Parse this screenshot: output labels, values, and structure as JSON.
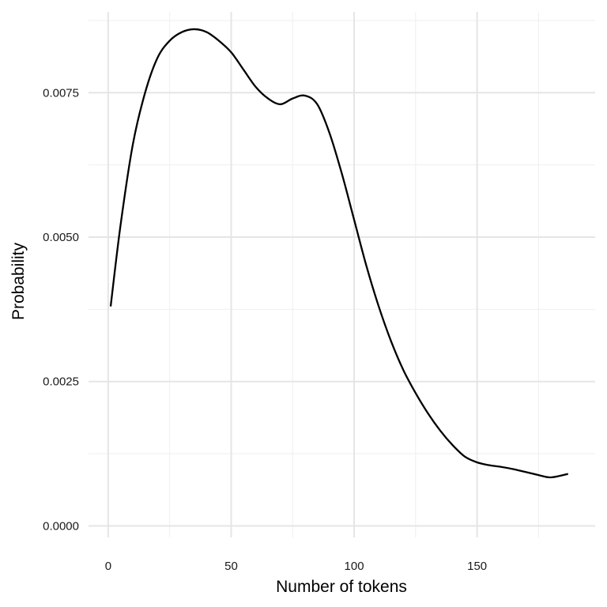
{
  "chart_data": {
    "type": "line",
    "title": "",
    "xlabel": "Number of tokens",
    "ylabel": "Probability",
    "xlim": [
      -8,
      198
    ],
    "ylim": [
      -0.0002,
      0.0089
    ],
    "x_ticks": [
      0,
      50,
      100,
      150
    ],
    "x_tick_labels": [
      "0",
      "50",
      "100",
      "150"
    ],
    "x_minor_ticks": [
      25,
      75,
      125,
      175
    ],
    "y_ticks": [
      0,
      0.0025,
      0.005,
      0.0075
    ],
    "y_tick_labels": [
      "0.0000",
      "0.0025",
      "0.0050",
      "0.0075"
    ],
    "y_minor_ticks": [
      0.00125,
      0.00375,
      0.00625,
      0.00875
    ],
    "grid": true,
    "legend": "none",
    "colors": {
      "line": "#000000",
      "grid_major": "#e5e5e5",
      "grid_minor": "#efefef",
      "background": "#ffffff"
    },
    "series": [
      {
        "x": [
          1,
          5,
          10,
          15,
          20,
          25,
          30,
          35,
          40,
          45,
          50,
          55,
          60,
          65,
          70,
          75,
          80,
          85,
          90,
          95,
          100,
          105,
          110,
          115,
          120,
          125,
          130,
          135,
          140,
          145,
          150,
          155,
          160,
          165,
          170,
          175,
          180,
          187
        ],
        "values": [
          0.0038,
          0.0052,
          0.0066,
          0.0075,
          0.0081,
          0.0084,
          0.00855,
          0.0086,
          0.00855,
          0.0084,
          0.0082,
          0.0079,
          0.0076,
          0.0074,
          0.0073,
          0.0074,
          0.00745,
          0.0073,
          0.0068,
          0.0061,
          0.0053,
          0.0045,
          0.0038,
          0.0032,
          0.0027,
          0.0023,
          0.00195,
          0.00165,
          0.0014,
          0.0012,
          0.0011,
          0.00105,
          0.00102,
          0.00098,
          0.00093,
          0.00088,
          0.00084,
          0.0009
        ]
      }
    ]
  }
}
